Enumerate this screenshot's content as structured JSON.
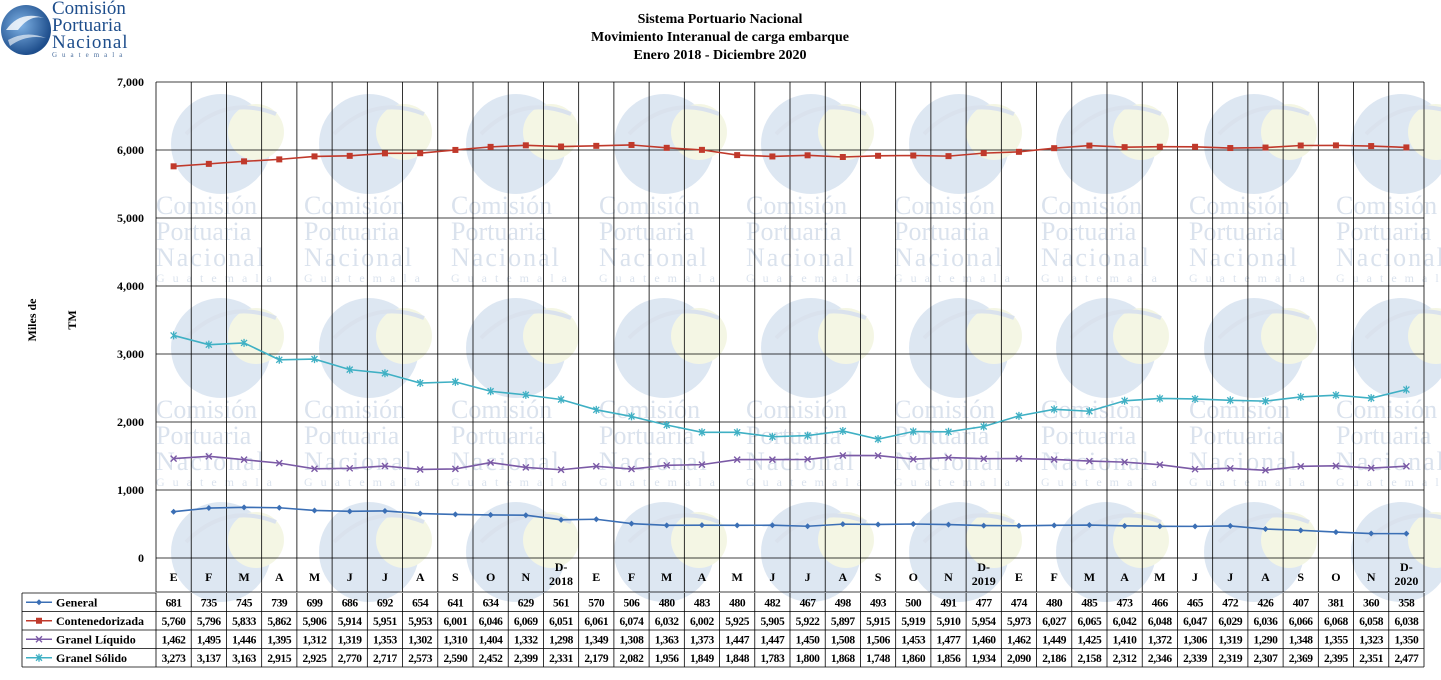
{
  "logo": {
    "line1": "Comisión",
    "line2": "Portuaria",
    "line3": "Nacional",
    "line4": "Guatemala"
  },
  "watermark": {
    "line1": "Comisión",
    "line2": "Portuaria",
    "line3": "Nacional",
    "line4": "Guatemala"
  },
  "colors": {
    "general": "#3b6fb5",
    "contenedorizada": "#c0392b",
    "granel_liquido": "#7b5aa6",
    "granel_solido": "#3fb0c4",
    "grid": "#000000"
  },
  "chart_data": {
    "type": "line",
    "title": "Sistema Portuario Nacional",
    "subtitle": "Movimiento Interanual de carga embarque",
    "period": "Enero 2018 - Diciembre 2020",
    "ylabel": "Miles de TM",
    "xlabel": "",
    "ylim": [
      0,
      7000
    ],
    "yticks": [
      "0",
      "1,000",
      "2,000",
      "3,000",
      "4,000",
      "5,000",
      "6,000",
      "7,000"
    ],
    "categories": [
      "E",
      "F",
      "M",
      "A",
      "M",
      "J",
      "J",
      "A",
      "S",
      "O",
      "N",
      "D-\n2018",
      "E",
      "F",
      "M",
      "A",
      "M",
      "J",
      "J",
      "A",
      "S",
      "O",
      "N",
      "D-\n2019",
      "E",
      "F",
      "M",
      "A",
      "M",
      "J",
      "J",
      "A",
      "S",
      "O",
      "N",
      "D-\n2020"
    ],
    "series": [
      {
        "name": "General",
        "key": "general",
        "marker": "diamond",
        "values": [
          681,
          735,
          745,
          739,
          699,
          686,
          692,
          654,
          641,
          634,
          629,
          561,
          570,
          506,
          480,
          483,
          480,
          482,
          467,
          498,
          493,
          500,
          491,
          477,
          474,
          480,
          485,
          473,
          466,
          465,
          472,
          426,
          407,
          381,
          360,
          358
        ],
        "labels": [
          "681",
          "735",
          "745",
          "739",
          "699",
          "686",
          "692",
          "654",
          "641",
          "634",
          "629",
          "561",
          "570",
          "506",
          "480",
          "483",
          "480",
          "482",
          "467",
          "498",
          "493",
          "500",
          "491",
          "477",
          "474",
          "480",
          "485",
          "473",
          "466",
          "465",
          "472",
          "426",
          "407",
          "381",
          "360",
          "358"
        ]
      },
      {
        "name": "Contenedorizada",
        "key": "contenedorizada",
        "marker": "square",
        "values": [
          5760,
          5796,
          5833,
          5862,
          5906,
          5914,
          5951,
          5953,
          6001,
          6046,
          6069,
          6051,
          6061,
          6074,
          6032,
          6002,
          5925,
          5905,
          5922,
          5897,
          5915,
          5919,
          5910,
          5954,
          5973,
          6027,
          6065,
          6042,
          6048,
          6047,
          6029,
          6036,
          6066,
          6068,
          6058,
          6038
        ],
        "labels": [
          "5,760",
          "5,796",
          "5,833",
          "5,862",
          "5,906",
          "5,914",
          "5,951",
          "5,953",
          "6,001",
          "6,046",
          "6,069",
          "6,051",
          "6,061",
          "6,074",
          "6,032",
          "6,002",
          "5,925",
          "5,905",
          "5,922",
          "5,897",
          "5,915",
          "5,919",
          "5,910",
          "5,954",
          "5,973",
          "6,027",
          "6,065",
          "6,042",
          "6,048",
          "6,047",
          "6,029",
          "6,036",
          "6,066",
          "6,068",
          "6,058",
          "6,038"
        ]
      },
      {
        "name": "Granel Líquido",
        "key": "granel_liquido",
        "marker": "x",
        "values": [
          1462,
          1495,
          1446,
          1395,
          1312,
          1319,
          1353,
          1302,
          1310,
          1404,
          1332,
          1298,
          1349,
          1308,
          1363,
          1373,
          1447,
          1447,
          1450,
          1508,
          1506,
          1453,
          1477,
          1460,
          1462,
          1449,
          1425,
          1410,
          1372,
          1306,
          1319,
          1290,
          1348,
          1355,
          1323,
          1350
        ],
        "labels": [
          "1,462",
          "1,495",
          "1,446",
          "1,395",
          "1,312",
          "1,319",
          "1,353",
          "1,302",
          "1,310",
          "1,404",
          "1,332",
          "1,298",
          "1,349",
          "1,308",
          "1,363",
          "1,373",
          "1,447",
          "1,447",
          "1,450",
          "1,508",
          "1,506",
          "1,453",
          "1,477",
          "1,460",
          "1,462",
          "1,449",
          "1,425",
          "1,410",
          "1,372",
          "1,306",
          "1,319",
          "1,290",
          "1,348",
          "1,355",
          "1,323",
          "1,350"
        ]
      },
      {
        "name": "Granel Sólido",
        "key": "granel_solido",
        "marker": "star",
        "values": [
          3273,
          3137,
          3163,
          2915,
          2925,
          2770,
          2717,
          2573,
          2590,
          2452,
          2399,
          2331,
          2179,
          2082,
          1956,
          1849,
          1848,
          1783,
          1800,
          1868,
          1748,
          1860,
          1856,
          1934,
          2090,
          2186,
          2158,
          2312,
          2346,
          2339,
          2319,
          2307,
          2369,
          2395,
          2351,
          2477
        ],
        "labels": [
          "3,273",
          "3,137",
          "3,163",
          "2,915",
          "2,925",
          "2,770",
          "2,717",
          "2,573",
          "2,590",
          "2,452",
          "2,399",
          "2,331",
          "2,179",
          "2,082",
          "1,956",
          "1,849",
          "1,848",
          "1,783",
          "1,800",
          "1,868",
          "1,748",
          "1,860",
          "1,856",
          "1,934",
          "2,090",
          "2,186",
          "2,158",
          "2,312",
          "2,346",
          "2,339",
          "2,319",
          "2,307",
          "2,369",
          "2,395",
          "2,351",
          "2,477"
        ]
      }
    ],
    "legend": "table-below",
    "grid": true
  }
}
